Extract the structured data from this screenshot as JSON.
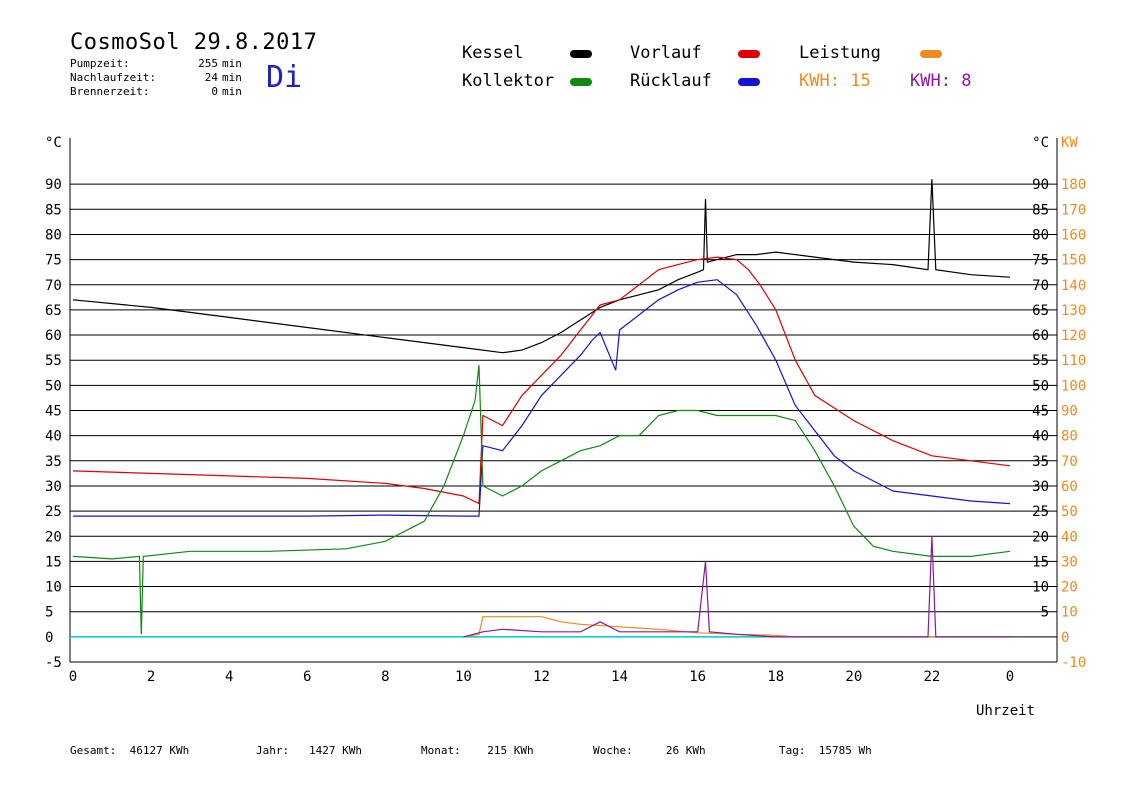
{
  "header": {
    "title": "CosmoSol 29.8.2017",
    "weekday": "Di",
    "info": [
      {
        "label": "Pumpzeit:",
        "value": "255",
        "unit": "min"
      },
      {
        "label": "Nachlaufzeit:",
        "value": "24",
        "unit": "min"
      },
      {
        "label": "Brennerzeit:",
        "value": "0",
        "unit": "min"
      }
    ]
  },
  "legend": {
    "kessel": {
      "label": "Kessel",
      "color": "#000000"
    },
    "vorlauf": {
      "label": "Vorlauf",
      "color": "#e00000"
    },
    "leistung": {
      "label": "Leistung",
      "color": "#f08a1e"
    },
    "kollektor": {
      "label": "Kollektor",
      "color": "#118811"
    },
    "ruecklauf": {
      "label": "Rücklauf",
      "color": "#1414d0"
    },
    "kwh1": {
      "label": "KWH:",
      "value": "15",
      "color": "#f08a1e"
    },
    "kwh2": {
      "label": "KWH:",
      "value": "8",
      "color": "#8a1a9a"
    }
  },
  "footer": [
    {
      "label": "Gesamt:",
      "value": "46127 KWh"
    },
    {
      "label": "Jahr:",
      "value": "1427 KWh"
    },
    {
      "label": "Monat:",
      "value": "215 KWh"
    },
    {
      "label": "Woche:",
      "value": "26 KWh"
    },
    {
      "label": "Tag:",
      "value": "15785 Wh"
    }
  ],
  "chart_data": {
    "type": "line",
    "xlabel": "Uhrzeit",
    "ylabel_left": "°C",
    "ylabel_right_unit_1": "°C",
    "ylabel_right_unit_2": "KW",
    "xlim": [
      0,
      24
    ],
    "ylim": [
      -5,
      95
    ],
    "x_ticks": [
      "0",
      "2",
      "4",
      "6",
      "8",
      "10",
      "12",
      "14",
      "16",
      "18",
      "20",
      "22",
      "0"
    ],
    "y_ticks_left": [
      90,
      85,
      80,
      75,
      70,
      65,
      60,
      55,
      50,
      45,
      40,
      35,
      30,
      25,
      20,
      15,
      10,
      5,
      0,
      -5
    ],
    "y_ticks_right_c": [
      90,
      85,
      80,
      75,
      70,
      65,
      60,
      55,
      50,
      45,
      40,
      35,
      30,
      25,
      20,
      15,
      10,
      5
    ],
    "y_ticks_right_kw": [
      180,
      170,
      160,
      150,
      140,
      130,
      120,
      110,
      100,
      90,
      80,
      70,
      60,
      50,
      40,
      30,
      20,
      10,
      0,
      -10
    ],
    "grid": true,
    "series": [
      {
        "name": "Kessel",
        "color": "#000000",
        "points": [
          [
            0,
            67
          ],
          [
            2,
            65.5
          ],
          [
            4,
            63.5
          ],
          [
            6,
            61.5
          ],
          [
            8,
            59.5
          ],
          [
            10,
            57.5
          ],
          [
            11,
            56.5
          ],
          [
            11.5,
            57
          ],
          [
            12,
            58.5
          ],
          [
            12.5,
            60.5
          ],
          [
            13,
            63
          ],
          [
            13.5,
            65.5
          ],
          [
            14,
            67
          ],
          [
            14.5,
            68
          ],
          [
            15,
            69
          ],
          [
            15.5,
            71
          ],
          [
            16,
            72.5
          ],
          [
            16.15,
            73
          ],
          [
            16.2,
            87
          ],
          [
            16.25,
            74.5
          ],
          [
            16.5,
            75
          ],
          [
            17,
            76
          ],
          [
            17.5,
            76
          ],
          [
            18,
            76.5
          ],
          [
            19,
            75.5
          ],
          [
            20,
            74.5
          ],
          [
            21,
            74
          ],
          [
            21.9,
            73
          ],
          [
            22,
            91
          ],
          [
            22.1,
            73
          ],
          [
            23,
            72
          ],
          [
            24,
            71.5
          ]
        ]
      },
      {
        "name": "Vorlauf",
        "color": "#e00000",
        "points": [
          [
            0,
            33
          ],
          [
            2,
            32.5
          ],
          [
            4,
            32
          ],
          [
            6,
            31.5
          ],
          [
            8,
            30.5
          ],
          [
            9,
            29.5
          ],
          [
            10,
            28
          ],
          [
            10.4,
            26.5
          ],
          [
            10.5,
            44
          ],
          [
            11,
            42
          ],
          [
            11.5,
            48
          ],
          [
            12,
            52
          ],
          [
            12.5,
            56
          ],
          [
            13,
            61
          ],
          [
            13.5,
            66
          ],
          [
            14,
            67
          ],
          [
            14.5,
            70
          ],
          [
            15,
            73
          ],
          [
            15.5,
            74
          ],
          [
            16,
            75
          ],
          [
            16.5,
            75.5
          ],
          [
            17,
            75
          ],
          [
            17.3,
            73
          ],
          [
            17.6,
            70
          ],
          [
            18,
            65
          ],
          [
            18.5,
            55
          ],
          [
            19,
            48
          ],
          [
            20,
            43
          ],
          [
            21,
            39
          ],
          [
            22,
            36
          ],
          [
            23,
            35
          ],
          [
            24,
            34
          ]
        ]
      },
      {
        "name": "Rücklauf",
        "color": "#1414d0",
        "points": [
          [
            0,
            24
          ],
          [
            2,
            24
          ],
          [
            4,
            24
          ],
          [
            6,
            24
          ],
          [
            8,
            24.2
          ],
          [
            10,
            24
          ],
          [
            10.4,
            24
          ],
          [
            10.5,
            38
          ],
          [
            11,
            37
          ],
          [
            11.5,
            42
          ],
          [
            12,
            48
          ],
          [
            12.5,
            52
          ],
          [
            13,
            56
          ],
          [
            13.3,
            59
          ],
          [
            13.5,
            60.5
          ],
          [
            13.9,
            53
          ],
          [
            14,
            61
          ],
          [
            14.5,
            64
          ],
          [
            15,
            67
          ],
          [
            15.5,
            69
          ],
          [
            16,
            70.5
          ],
          [
            16.5,
            71
          ],
          [
            17,
            68
          ],
          [
            17.5,
            62
          ],
          [
            18,
            55
          ],
          [
            18.5,
            46
          ],
          [
            19,
            41
          ],
          [
            19.5,
            36
          ],
          [
            20,
            33
          ],
          [
            21,
            29
          ],
          [
            22,
            28
          ],
          [
            23,
            27
          ],
          [
            24,
            26.5
          ]
        ]
      },
      {
        "name": "Kollektor",
        "color": "#118811",
        "points": [
          [
            0,
            16
          ],
          [
            1,
            15.5
          ],
          [
            1.7,
            16
          ],
          [
            1.75,
            0.5
          ],
          [
            1.8,
            16
          ],
          [
            3,
            17
          ],
          [
            5,
            17
          ],
          [
            7,
            17.5
          ],
          [
            8,
            19
          ],
          [
            9,
            23
          ],
          [
            9.5,
            30
          ],
          [
            10,
            40
          ],
          [
            10.3,
            47
          ],
          [
            10.4,
            54
          ],
          [
            10.5,
            30
          ],
          [
            11,
            28
          ],
          [
            11.5,
            30
          ],
          [
            12,
            33
          ],
          [
            12.5,
            35
          ],
          [
            13,
            37
          ],
          [
            13.5,
            38
          ],
          [
            14,
            40
          ],
          [
            14.5,
            40
          ],
          [
            15,
            44
          ],
          [
            15.5,
            45
          ],
          [
            16,
            45
          ],
          [
            16.5,
            44
          ],
          [
            17,
            44
          ],
          [
            17.5,
            44
          ],
          [
            18,
            44
          ],
          [
            18.5,
            43
          ],
          [
            19,
            37
          ],
          [
            19.5,
            30
          ],
          [
            20,
            22
          ],
          [
            20.5,
            18
          ],
          [
            21,
            17
          ],
          [
            22,
            16
          ],
          [
            22.5,
            16
          ],
          [
            23,
            16
          ],
          [
            24,
            17
          ]
        ]
      },
      {
        "name": "Leistung",
        "color": "#f08a1e",
        "points": [
          [
            10,
            0
          ],
          [
            10.4,
            0.5
          ],
          [
            10.5,
            4
          ],
          [
            11,
            4
          ],
          [
            12,
            4
          ],
          [
            12.5,
            3
          ],
          [
            13,
            2.5
          ],
          [
            14,
            2
          ],
          [
            15,
            1.5
          ],
          [
            16,
            0.8
          ],
          [
            17,
            0.5
          ],
          [
            18,
            0.3
          ],
          [
            18.5,
            0
          ],
          [
            24,
            0
          ]
        ]
      }
    ],
    "kwh_series": [
      {
        "name": "KWH: 8",
        "color": "#8a1a9a",
        "points": [
          [
            10,
            0
          ],
          [
            10.5,
            1
          ],
          [
            11,
            1.5
          ],
          [
            12,
            1
          ],
          [
            13,
            1
          ],
          [
            13.5,
            3
          ],
          [
            14,
            1
          ],
          [
            15,
            1
          ],
          [
            16,
            1
          ],
          [
            16.2,
            15
          ],
          [
            16.3,
            1
          ],
          [
            17,
            0.5
          ],
          [
            18,
            0
          ],
          [
            21.9,
            0
          ],
          [
            22,
            20
          ],
          [
            22.1,
            0
          ],
          [
            24,
            0
          ]
        ]
      }
    ],
    "baseline": {
      "value": 0,
      "color": "#00d0d0"
    }
  }
}
